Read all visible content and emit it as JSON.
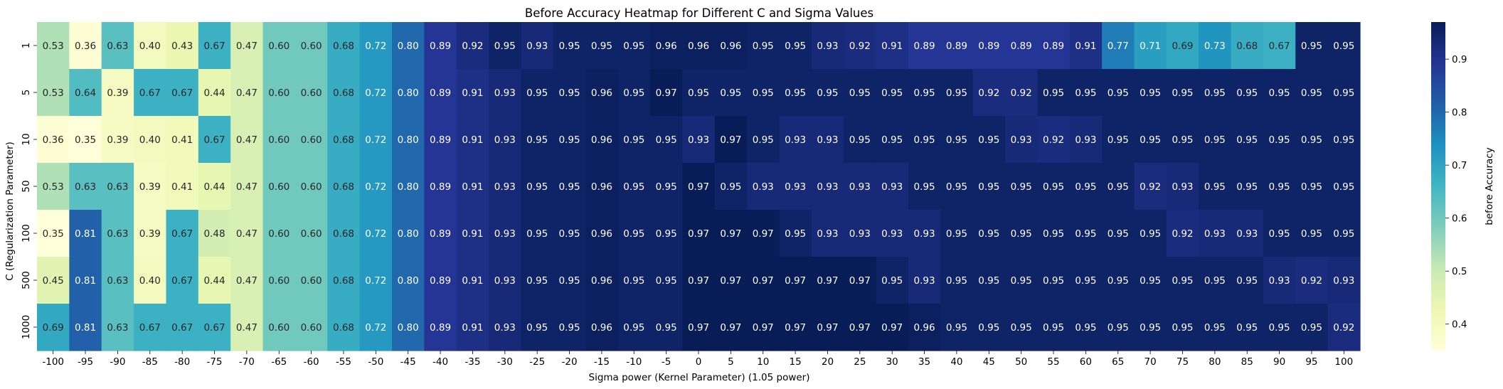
{
  "chart_data": {
    "type": "heatmap",
    "title": "Before Accuracy Heatmap for Different C and Sigma Values",
    "xlabel": "Sigma power (Kernel Parameter) (1.05 power)",
    "ylabel": "C (Regularization Parameter)",
    "colorbar_label": "before Accuracy",
    "colormap": "YlGnBu",
    "vmin": 0.35,
    "vmax": 0.97,
    "colorbar_ticks": [
      "0.4",
      "0.5",
      "0.6",
      "0.7",
      "0.8",
      "0.9"
    ],
    "x": [
      "-100",
      "-95",
      "-90",
      "-85",
      "-80",
      "-75",
      "-70",
      "-65",
      "-60",
      "-55",
      "-50",
      "-45",
      "-40",
      "-35",
      "-30",
      "-25",
      "-20",
      "-15",
      "-10",
      "-5",
      "0",
      "5",
      "10",
      "15",
      "20",
      "25",
      "30",
      "35",
      "40",
      "45",
      "50",
      "55",
      "60",
      "65",
      "70",
      "75",
      "80",
      "85",
      "90",
      "95",
      "100"
    ],
    "y": [
      "1",
      "5",
      "10",
      "50",
      "100",
      "500",
      "1000"
    ],
    "values": [
      [
        "0.53",
        "0.36",
        "0.63",
        "0.40",
        "0.43",
        "0.67",
        "0.47",
        "0.60",
        "0.60",
        "0.68",
        "0.72",
        "0.80",
        "0.89",
        "0.92",
        "0.95",
        "0.93",
        "0.95",
        "0.95",
        "0.95",
        "0.96",
        "0.96",
        "0.96",
        "0.95",
        "0.95",
        "0.93",
        "0.92",
        "0.91",
        "0.89",
        "0.89",
        "0.89",
        "0.89",
        "0.89",
        "0.91",
        "0.77",
        "0.71",
        "0.69",
        "0.73",
        "0.68",
        "0.67",
        "0.95",
        "0.95"
      ],
      [
        "0.53",
        "0.64",
        "0.39",
        "0.67",
        "0.67",
        "0.44",
        "0.47",
        "0.60",
        "0.60",
        "0.68",
        "0.72",
        "0.80",
        "0.89",
        "0.91",
        "0.93",
        "0.95",
        "0.95",
        "0.96",
        "0.95",
        "0.97",
        "0.95",
        "0.95",
        "0.95",
        "0.95",
        "0.95",
        "0.95",
        "0.95",
        "0.95",
        "0.95",
        "0.92",
        "0.92",
        "0.95",
        "0.95",
        "0.95",
        "0.95",
        "0.95",
        "0.95",
        "0.95",
        "0.95",
        "0.95",
        "0.95"
      ],
      [
        "0.36",
        "0.35",
        "0.39",
        "0.40",
        "0.41",
        "0.67",
        "0.47",
        "0.60",
        "0.60",
        "0.68",
        "0.72",
        "0.80",
        "0.89",
        "0.91",
        "0.93",
        "0.95",
        "0.95",
        "0.96",
        "0.95",
        "0.95",
        "0.93",
        "0.97",
        "0.95",
        "0.93",
        "0.93",
        "0.95",
        "0.95",
        "0.95",
        "0.95",
        "0.95",
        "0.93",
        "0.92",
        "0.93",
        "0.95",
        "0.95",
        "0.95",
        "0.95",
        "0.95",
        "0.95",
        "0.95",
        "0.95"
      ],
      [
        "0.53",
        "0.63",
        "0.63",
        "0.39",
        "0.41",
        "0.44",
        "0.47",
        "0.60",
        "0.60",
        "0.68",
        "0.72",
        "0.80",
        "0.89",
        "0.91",
        "0.93",
        "0.95",
        "0.95",
        "0.96",
        "0.95",
        "0.95",
        "0.97",
        "0.95",
        "0.93",
        "0.93",
        "0.93",
        "0.93",
        "0.93",
        "0.95",
        "0.95",
        "0.95",
        "0.95",
        "0.95",
        "0.95",
        "0.95",
        "0.92",
        "0.93",
        "0.95",
        "0.95",
        "0.95",
        "0.95",
        "0.95"
      ],
      [
        "0.35",
        "0.81",
        "0.63",
        "0.39",
        "0.67",
        "0.48",
        "0.47",
        "0.60",
        "0.60",
        "0.68",
        "0.72",
        "0.80",
        "0.89",
        "0.91",
        "0.93",
        "0.95",
        "0.95",
        "0.96",
        "0.95",
        "0.95",
        "0.97",
        "0.97",
        "0.97",
        "0.95",
        "0.93",
        "0.93",
        "0.93",
        "0.93",
        "0.95",
        "0.95",
        "0.95",
        "0.95",
        "0.95",
        "0.95",
        "0.95",
        "0.92",
        "0.93",
        "0.93",
        "0.95",
        "0.95",
        "0.95"
      ],
      [
        "0.45",
        "0.81",
        "0.63",
        "0.40",
        "0.67",
        "0.44",
        "0.47",
        "0.60",
        "0.60",
        "0.68",
        "0.72",
        "0.80",
        "0.89",
        "0.91",
        "0.93",
        "0.95",
        "0.95",
        "0.96",
        "0.95",
        "0.95",
        "0.97",
        "0.97",
        "0.97",
        "0.97",
        "0.97",
        "0.97",
        "0.95",
        "0.93",
        "0.95",
        "0.95",
        "0.95",
        "0.95",
        "0.95",
        "0.95",
        "0.95",
        "0.95",
        "0.95",
        "0.95",
        "0.93",
        "0.92",
        "0.93"
      ],
      [
        "0.69",
        "0.81",
        "0.63",
        "0.67",
        "0.67",
        "0.67",
        "0.47",
        "0.60",
        "0.60",
        "0.68",
        "0.72",
        "0.80",
        "0.89",
        "0.91",
        "0.93",
        "0.95",
        "0.95",
        "0.96",
        "0.95",
        "0.95",
        "0.97",
        "0.97",
        "0.97",
        "0.97",
        "0.97",
        "0.97",
        "0.97",
        "0.96",
        "0.95",
        "0.95",
        "0.95",
        "0.95",
        "0.95",
        "0.95",
        "0.95",
        "0.95",
        "0.95",
        "0.95",
        "0.95",
        "0.95",
        "0.92"
      ]
    ]
  }
}
